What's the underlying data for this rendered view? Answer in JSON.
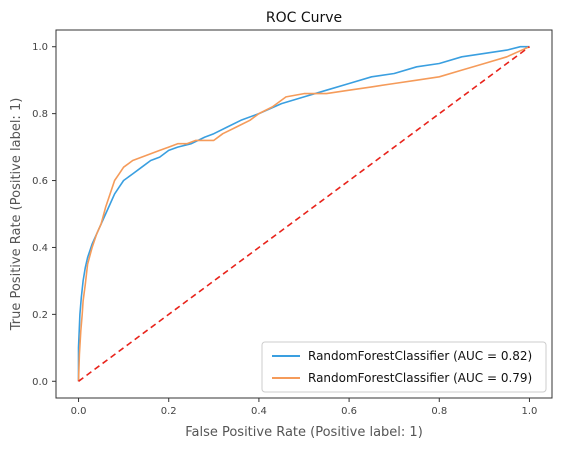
{
  "chart_data": {
    "type": "line",
    "title": "ROC Curve",
    "xlabel": "False Positive Rate (Positive label: 1)",
    "ylabel": "True Positive Rate (Positive label: 1)",
    "xlim": [
      -0.05,
      1.05
    ],
    "ylim": [
      -0.05,
      1.05
    ],
    "xticks": [
      "0.0",
      "0.2",
      "0.4",
      "0.6",
      "0.8",
      "1.0"
    ],
    "yticks": [
      "0.0",
      "0.2",
      "0.4",
      "0.6",
      "0.8",
      "1.0"
    ],
    "grid": false,
    "legend_position": "lower-right",
    "series": [
      {
        "name": "RandomForestClassifier (AUC = 0.82)",
        "color": "#3a9fe0",
        "x": [
          0,
          0,
          0.003,
          0.006,
          0.01,
          0.015,
          0.02,
          0.03,
          0.04,
          0.05,
          0.06,
          0.07,
          0.08,
          0.09,
          0.1,
          0.12,
          0.14,
          0.16,
          0.18,
          0.2,
          0.22,
          0.25,
          0.28,
          0.3,
          0.33,
          0.36,
          0.4,
          0.45,
          0.5,
          0.55,
          0.6,
          0.65,
          0.7,
          0.75,
          0.8,
          0.85,
          0.9,
          0.95,
          0.98,
          1.0
        ],
        "y": [
          0,
          0.1,
          0.2,
          0.25,
          0.3,
          0.34,
          0.37,
          0.41,
          0.44,
          0.47,
          0.5,
          0.53,
          0.56,
          0.58,
          0.6,
          0.62,
          0.64,
          0.66,
          0.67,
          0.69,
          0.7,
          0.71,
          0.73,
          0.74,
          0.76,
          0.78,
          0.8,
          0.83,
          0.85,
          0.87,
          0.89,
          0.91,
          0.92,
          0.94,
          0.95,
          0.97,
          0.98,
          0.99,
          1.0,
          1.0
        ]
      },
      {
        "name": "RandomForestClassifier (AUC = 0.79)",
        "color": "#f59b5a",
        "x": [
          0,
          0.002,
          0.005,
          0.008,
          0.01,
          0.015,
          0.02,
          0.03,
          0.04,
          0.05,
          0.06,
          0.07,
          0.08,
          0.09,
          0.1,
          0.12,
          0.14,
          0.16,
          0.18,
          0.2,
          0.22,
          0.24,
          0.26,
          0.28,
          0.3,
          0.32,
          0.35,
          0.38,
          0.4,
          0.43,
          0.46,
          0.5,
          0.55,
          0.6,
          0.65,
          0.7,
          0.75,
          0.8,
          0.85,
          0.9,
          0.95,
          1.0
        ],
        "y": [
          0,
          0.08,
          0.15,
          0.2,
          0.24,
          0.29,
          0.35,
          0.4,
          0.44,
          0.47,
          0.52,
          0.56,
          0.6,
          0.62,
          0.64,
          0.66,
          0.67,
          0.68,
          0.69,
          0.7,
          0.71,
          0.71,
          0.72,
          0.72,
          0.72,
          0.74,
          0.76,
          0.78,
          0.8,
          0.82,
          0.85,
          0.86,
          0.86,
          0.87,
          0.88,
          0.89,
          0.9,
          0.91,
          0.93,
          0.95,
          0.97,
          1.0
        ]
      },
      {
        "name": "",
        "color": "#e8231b",
        "dashed": true,
        "x": [
          0,
          1
        ],
        "y": [
          0,
          1
        ]
      }
    ]
  }
}
